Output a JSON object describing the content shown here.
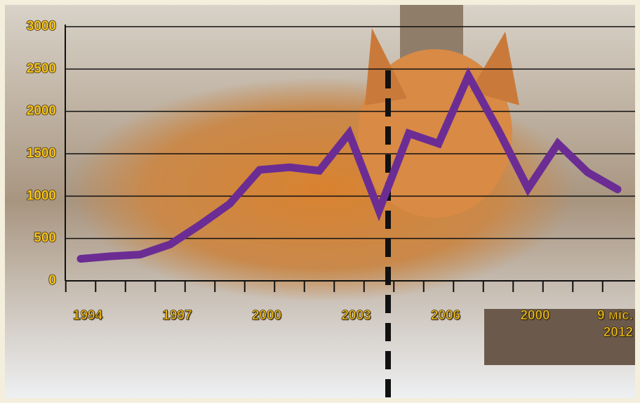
{
  "chart_data": {
    "type": "line",
    "categories": [
      "1994",
      null,
      null,
      "1997",
      null,
      null,
      "2000",
      null,
      null,
      "2003",
      null,
      null,
      "2006",
      null,
      null,
      "2000",
      null,
      null,
      "9 міс. 2012"
    ],
    "series": [
      {
        "color": "#6b2d93",
        "values": [
          260,
          290,
          310,
          430,
          660,
          910,
          1310,
          1340,
          1300,
          1740,
          830,
          1740,
          1620,
          2420,
          1780,
          1090,
          1620,
          1280,
          1080
        ]
      }
    ],
    "ylim": [
      0,
      3000
    ],
    "yticks": [
      0,
      500,
      1000,
      1500,
      2000,
      2500,
      3000
    ],
    "grid": true
  }
}
